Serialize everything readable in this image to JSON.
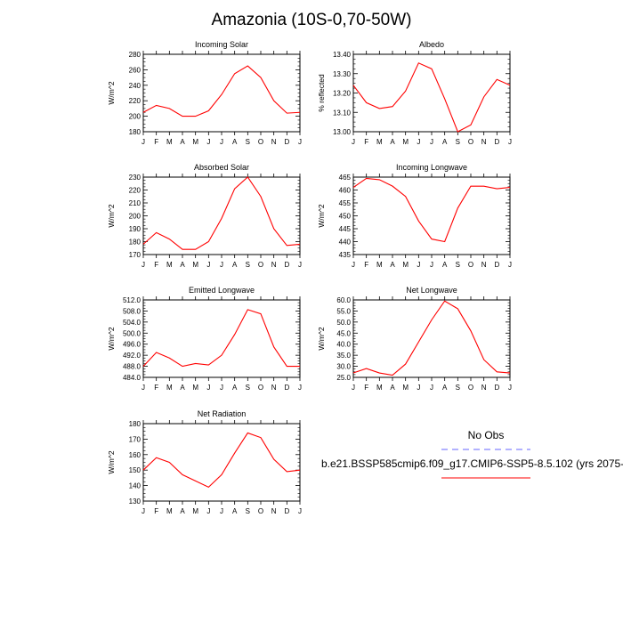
{
  "title": "Amazonia (10S-0,70-50W)",
  "months": [
    "J",
    "F",
    "M",
    "A",
    "M",
    "J",
    "J",
    "A",
    "S",
    "O",
    "N",
    "D",
    "J"
  ],
  "colors": {
    "model_line": "#ff0000",
    "obs_line": "#6666ff"
  },
  "legend": {
    "obs_label": "No Obs",
    "case_label": "b.e21.BSSP585cmip6.f09_g17.CMIP6-SSP5-8.5.102 (yrs 2075-"
  },
  "chart_data": [
    {
      "type": "line",
      "title": "Incoming Solar",
      "ylabel": "W/m^2",
      "ylim": [
        180,
        280
      ],
      "yticks": [
        180,
        200,
        220,
        240,
        260,
        280
      ],
      "ytick_labels": [
        "180",
        "200",
        "220",
        "240",
        "260",
        "280"
      ],
      "values": [
        205,
        214,
        210,
        200,
        200,
        207,
        228,
        255,
        265,
        250,
        220,
        204,
        205
      ]
    },
    {
      "type": "line",
      "title": "Albedo",
      "ylabel": "% reflected",
      "ylim": [
        13.0,
        13.4
      ],
      "yticks": [
        13.0,
        13.1,
        13.2,
        13.3,
        13.4
      ],
      "ytick_labels": [
        "13.00",
        "13.10",
        "13.20",
        "13.30",
        "13.40"
      ],
      "values": [
        13.24,
        13.15,
        13.12,
        13.13,
        13.21,
        13.355,
        13.325,
        13.17,
        13.0,
        13.035,
        13.18,
        13.27,
        13.24
      ]
    },
    {
      "type": "line",
      "title": "Absorbed Solar",
      "ylabel": "W/m^2",
      "ylim": [
        170,
        230
      ],
      "yticks": [
        170,
        180,
        190,
        200,
        210,
        220,
        230
      ],
      "ytick_labels": [
        "170",
        "180",
        "190",
        "200",
        "210",
        "220",
        "230"
      ],
      "values": [
        178,
        187,
        182,
        174,
        174,
        180,
        198,
        221,
        230,
        215,
        190,
        177,
        178
      ]
    },
    {
      "type": "line",
      "title": "Incoming Longwave",
      "ylabel": "W/m^2",
      "ylim": [
        435,
        465
      ],
      "yticks": [
        435,
        440,
        445,
        450,
        455,
        460,
        465
      ],
      "ytick_labels": [
        "435",
        "440",
        "445",
        "450",
        "455",
        "460",
        "465"
      ],
      "values": [
        461,
        464.5,
        464,
        461.5,
        457.5,
        448,
        441,
        440,
        453,
        461.5,
        461.5,
        460.5,
        461
      ]
    },
    {
      "type": "line",
      "title": "Emitted Longwave",
      "ylabel": "W/m^2",
      "ylim": [
        484,
        512
      ],
      "yticks": [
        484,
        488,
        492,
        496,
        500,
        504,
        508,
        512
      ],
      "ytick_labels": [
        "484.0",
        "488.0",
        "492.0",
        "496.0",
        "500.0",
        "504.0",
        "508.0",
        "512.0"
      ],
      "values": [
        488,
        493,
        491,
        488,
        489,
        488.5,
        492,
        499.5,
        508.5,
        507,
        495,
        488,
        488
      ]
    },
    {
      "type": "line",
      "title": "Net Longwave",
      "ylabel": "W/m^2",
      "ylim": [
        25,
        60
      ],
      "yticks": [
        25,
        30,
        35,
        40,
        45,
        50,
        55,
        60
      ],
      "ytick_labels": [
        "25.0",
        "30.0",
        "35.0",
        "40.0",
        "45.0",
        "50.0",
        "55.0",
        "60.0"
      ],
      "values": [
        27,
        29,
        27,
        26,
        31,
        41,
        51,
        59.5,
        56,
        46,
        33,
        27.5,
        27
      ]
    },
    {
      "type": "line",
      "title": "Net Radiation",
      "ylabel": "W/m^2",
      "ylim": [
        130,
        180
      ],
      "yticks": [
        130,
        140,
        150,
        160,
        170,
        180
      ],
      "ytick_labels": [
        "130",
        "140",
        "150",
        "160",
        "170",
        "180"
      ],
      "values": [
        150,
        158,
        155,
        147,
        143,
        139,
        147,
        161,
        174,
        171,
        157,
        149,
        150
      ]
    }
  ]
}
